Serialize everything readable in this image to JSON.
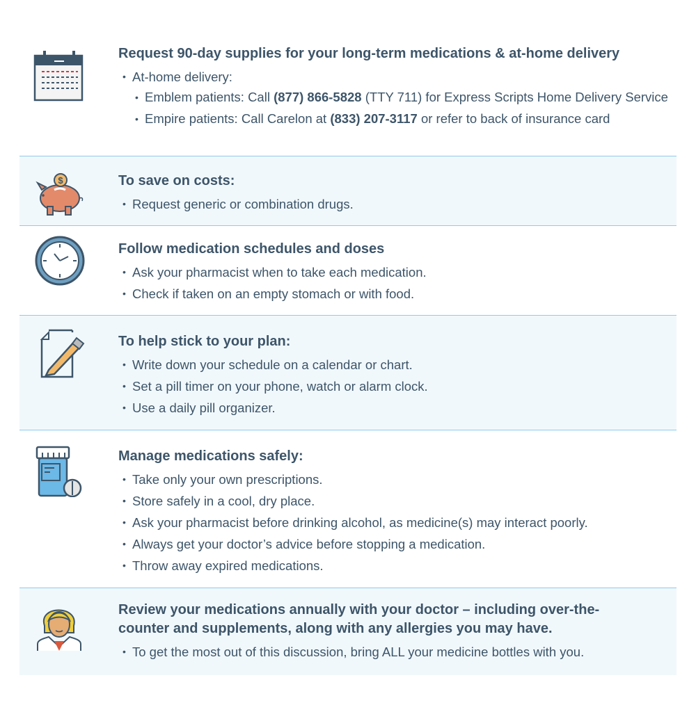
{
  "sections": [
    {
      "icon": "calendar-icon",
      "title": "Request 90-day supplies for your long-term medications & at-home delivery",
      "items": [
        {
          "level": 1,
          "segments": [
            {
              "t": "At-home delivery:"
            }
          ]
        },
        {
          "level": 2,
          "segments": [
            {
              "t": "Emblem patients: Call "
            },
            {
              "t": "(877) 866-5828",
              "b": true
            },
            {
              "t": " (TTY 711) for Express Scripts Home Delivery Service"
            }
          ]
        },
        {
          "level": 2,
          "segments": [
            {
              "t": "Empire patients: Call Carelon at "
            },
            {
              "t": "(833) 207-3117",
              "b": true
            },
            {
              "t": " or refer to back of insurance card"
            }
          ]
        }
      ]
    },
    {
      "icon": "piggy-bank-icon",
      "title": "To save on costs:",
      "items": [
        {
          "level": 1,
          "segments": [
            {
              "t": "Request generic or combination drugs."
            }
          ]
        }
      ]
    },
    {
      "icon": "clock-icon",
      "title": "Follow medication schedules and doses",
      "items": [
        {
          "level": 1,
          "segments": [
            {
              "t": "Ask your pharmacist when to take each medication."
            }
          ]
        },
        {
          "level": 1,
          "segments": [
            {
              "t": "Check if taken on an empty stomach or with food."
            }
          ]
        }
      ]
    },
    {
      "icon": "pencil-paper-icon",
      "title": "To help stick to your plan:",
      "items": [
        {
          "level": 1,
          "segments": [
            {
              "t": "Write down your schedule on a calendar or chart."
            }
          ]
        },
        {
          "level": 1,
          "segments": [
            {
              "t": "Set a pill timer on your phone, watch or alarm clock."
            }
          ]
        },
        {
          "level": 1,
          "segments": [
            {
              "t": "Use a daily pill organizer."
            }
          ]
        }
      ]
    },
    {
      "icon": "pill-bottle-icon",
      "title": "Manage medications safely:",
      "items": [
        {
          "level": 1,
          "segments": [
            {
              "t": "Take only your own prescriptions."
            }
          ]
        },
        {
          "level": 1,
          "segments": [
            {
              "t": "Store safely in a cool, dry place."
            }
          ]
        },
        {
          "level": 1,
          "segments": [
            {
              "t": "Ask your pharmacist before drinking alcohol, as medicine(s) may interact poorly."
            }
          ]
        },
        {
          "level": 1,
          "segments": [
            {
              "t": "Always get your doctor’s advice before stopping a medication."
            }
          ]
        },
        {
          "level": 1,
          "segments": [
            {
              "t": "Throw away expired medications."
            }
          ]
        }
      ]
    },
    {
      "icon": "doctor-icon",
      "title": "Review your medications annually with your doctor – including over-the-counter and supplements, along with any allergies you may have.",
      "items": [
        {
          "level": 1,
          "segments": [
            {
              "t": "To get the most out of this discussion, bring ALL your medicine bottles with you."
            }
          ]
        }
      ]
    }
  ],
  "colors": {
    "text": "#3d5569",
    "panel": "#f1f8fc",
    "divider": "#8ccbec",
    "accent_red": "#d9363e",
    "piggy": "#e38a6a",
    "coin": "#f2b96a",
    "bottle": "#6cb8e6",
    "hair": "#f0cf3c"
  }
}
